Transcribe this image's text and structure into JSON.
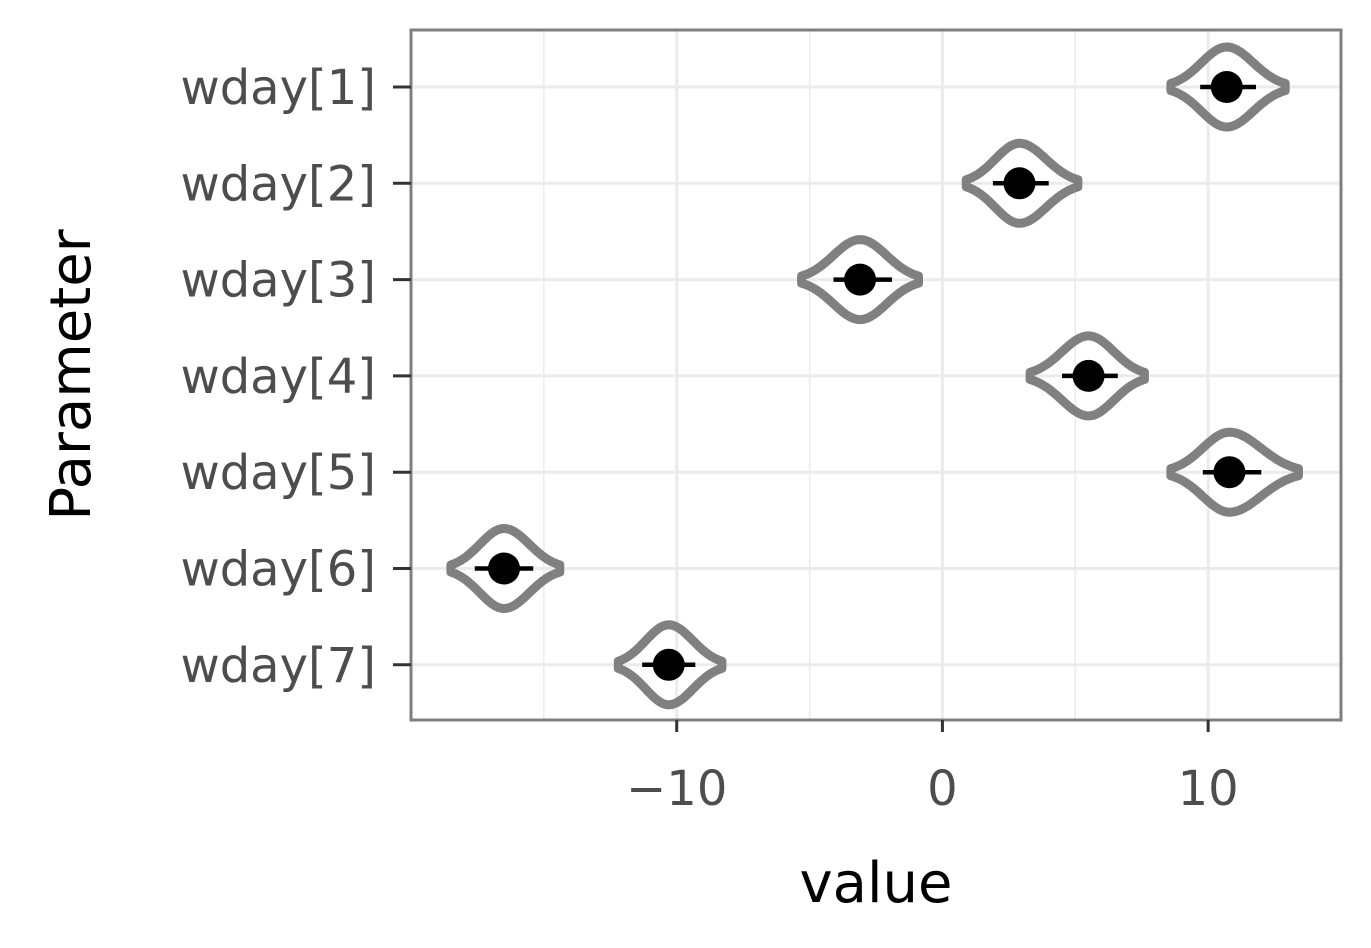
{
  "chart_data": {
    "type": "violin",
    "xlabel": "value",
    "ylabel": "Parameter",
    "xlim": [
      -20,
      15
    ],
    "x_ticks": [
      -10,
      0,
      10
    ],
    "x_tick_labels": [
      "−10",
      "0",
      "10"
    ],
    "x_minor_ticks": [
      -15,
      -5,
      5
    ],
    "categories": [
      "wday[1]",
      "wday[2]",
      "wday[3]",
      "wday[4]",
      "wday[5]",
      "wday[6]",
      "wday[7]"
    ],
    "points": [
      {
        "label": "wday[1]",
        "estimate": 10.7,
        "ci": [
          9.7,
          11.8
        ],
        "range": [
          8.6,
          12.9
        ]
      },
      {
        "label": "wday[2]",
        "estimate": 2.9,
        "ci": [
          1.9,
          4.0
        ],
        "range": [
          0.9,
          5.1
        ]
      },
      {
        "label": "wday[3]",
        "estimate": -3.1,
        "ci": [
          -4.1,
          -1.9
        ],
        "range": [
          -5.3,
          -0.9
        ]
      },
      {
        "label": "wday[4]",
        "estimate": 5.5,
        "ci": [
          4.5,
          6.6
        ],
        "range": [
          3.3,
          7.6
        ]
      },
      {
        "label": "wday[5]",
        "estimate": 10.8,
        "ci": [
          9.8,
          12.0
        ],
        "range": [
          8.6,
          13.4
        ]
      },
      {
        "label": "wday[6]",
        "estimate": -16.5,
        "ci": [
          -17.6,
          -15.4
        ],
        "range": [
          -18.5,
          -14.4
        ]
      },
      {
        "label": "wday[7]",
        "estimate": -10.3,
        "ci": [
          -11.3,
          -9.3
        ],
        "range": [
          -12.2,
          -8.3
        ]
      }
    ],
    "grid": true,
    "colors": {
      "violin": "#808080",
      "point": "#000000",
      "grid": "#ebebeb",
      "border": "#7f7f7f",
      "tick_text": "#4d4d4d"
    }
  }
}
